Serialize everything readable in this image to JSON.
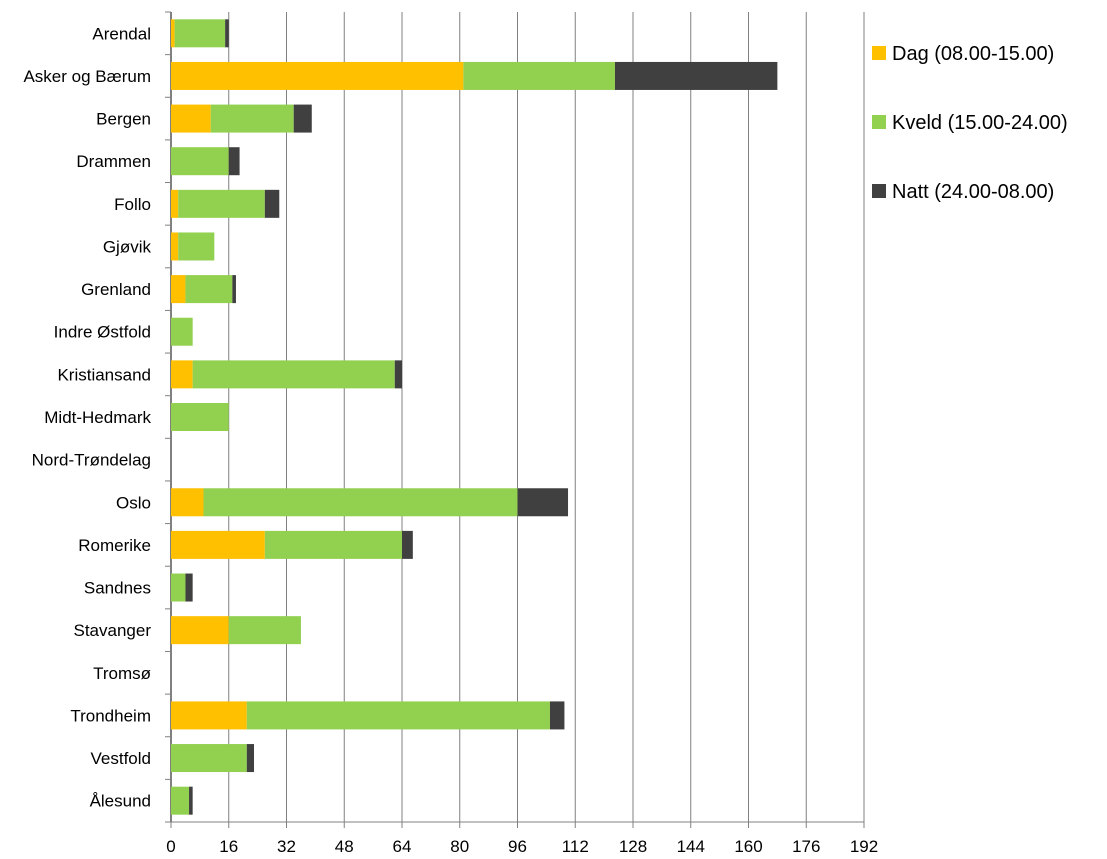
{
  "chart_data": {
    "type": "bar",
    "orientation": "horizontal",
    "stacked": true,
    "title": "",
    "xlabel": "",
    "ylabel": "",
    "xlim": [
      0,
      192
    ],
    "xticks": [
      0,
      16,
      32,
      48,
      64,
      80,
      96,
      112,
      128,
      144,
      160,
      176,
      192
    ],
    "grid": true,
    "legend_position": "right",
    "categories": [
      "Arendal",
      "Asker og Bærum",
      "Bergen",
      "Drammen",
      "Follo",
      "Gjøvik",
      "Grenland",
      "Indre Østfold",
      "Kristiansand",
      "Midt-Hedmark",
      "Nord-Trøndelag",
      "Oslo",
      "Romerike",
      "Sandnes",
      "Stavanger",
      "Tromsø",
      "Trondheim",
      "Vestfold",
      "Ålesund"
    ],
    "series": [
      {
        "name": "Dag (08.00-15.00)",
        "color": "#FFC000",
        "values": [
          1,
          81,
          11,
          0,
          2,
          2,
          4,
          0,
          6,
          0,
          0,
          9,
          26,
          0,
          16,
          0,
          21,
          0,
          0
        ]
      },
      {
        "name": "Kveld (15.00-24.00)",
        "color": "#92D050",
        "values": [
          14,
          42,
          23,
          16,
          24,
          10,
          13,
          6,
          56,
          16,
          0,
          87,
          38,
          4,
          20,
          0,
          84,
          21,
          5
        ]
      },
      {
        "name": "Natt (24.00-08.00)",
        "color": "#404040",
        "values": [
          1,
          45,
          5,
          3,
          4,
          0,
          1,
          0,
          2,
          0,
          0,
          14,
          3,
          2,
          0,
          0,
          4,
          2,
          1
        ]
      }
    ]
  }
}
